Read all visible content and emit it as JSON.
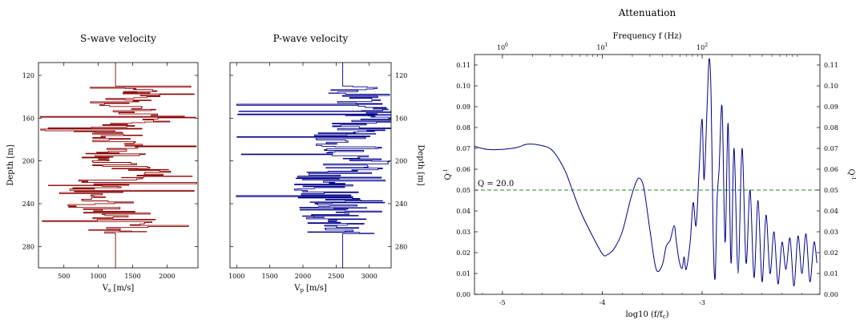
{
  "chart_data": [
    {
      "type": "line",
      "title": "S-wave velocity",
      "xlabel_main": "V",
      "xlabel_sub": "s",
      "xlabel_unit": "[m/s]",
      "ylabel": "Depth [m]",
      "xlim": [
        130,
        2450
      ],
      "ylim": [
        300,
        108
      ],
      "y_inverted": true,
      "xticks": [
        500,
        1000,
        1500,
        2000
      ],
      "yticks": [
        120,
        160,
        200,
        240,
        280
      ],
      "color": "#8b0000",
      "ref_value": 1250,
      "depth_range": [
        130,
        268
      ],
      "mean": 1250,
      "min": 140,
      "max": 2440,
      "anchors": [
        [
          130,
          1250
        ],
        [
          140,
          1480
        ],
        [
          148,
          1120
        ],
        [
          156,
          1800
        ],
        [
          160,
          2050
        ],
        [
          166,
          1450
        ],
        [
          172,
          1050
        ],
        [
          180,
          1250
        ],
        [
          188,
          1500
        ],
        [
          196,
          1100
        ],
        [
          204,
          1350
        ],
        [
          212,
          1700
        ],
        [
          220,
          1000
        ],
        [
          228,
          900
        ],
        [
          236,
          1000
        ],
        [
          244,
          1050
        ],
        [
          252,
          1400
        ],
        [
          260,
          1400
        ],
        [
          268,
          1250
        ]
      ]
    },
    {
      "type": "line",
      "title": "P-wave velocity",
      "xlabel_main": "V",
      "xlabel_sub": "p",
      "xlabel_unit": "[m/s]",
      "ylabel": "Depth [m]",
      "xlim": [
        900,
        3330
      ],
      "ylim": [
        300,
        108
      ],
      "y_inverted": true,
      "xticks": [
        1000,
        1500,
        2000,
        2500,
        3000
      ],
      "yticks": [
        120,
        160,
        200,
        240,
        280
      ],
      "color": "#00008b",
      "ref_value": 2600,
      "depth_range": [
        130,
        268
      ],
      "mean": 2600,
      "min": 930,
      "max": 3320,
      "anchors": [
        [
          130,
          2700
        ],
        [
          140,
          2850
        ],
        [
          148,
          3000
        ],
        [
          156,
          3100
        ],
        [
          160,
          3050
        ],
        [
          166,
          2850
        ],
        [
          172,
          2800
        ],
        [
          180,
          2500
        ],
        [
          188,
          2700
        ],
        [
          196,
          2750
        ],
        [
          204,
          2850
        ],
        [
          212,
          2500
        ],
        [
          220,
          2300
        ],
        [
          228,
          2350
        ],
        [
          236,
          2400
        ],
        [
          244,
          2450
        ],
        [
          252,
          2500
        ],
        [
          260,
          2550
        ],
        [
          268,
          2600
        ]
      ]
    },
    {
      "type": "line",
      "title": "Attenuation",
      "xlabel": "log10 (f/f",
      "xlabel_sub": "c",
      "xlabel_close": ")",
      "top_xlabel": "Frequency f (Hz)",
      "ylabel_main": "Q",
      "ylabel_sup": "-1",
      "xlim": [
        -5.28,
        -1.82
      ],
      "ylim": [
        0,
        0.115
      ],
      "xticks": [
        -5,
        -4,
        -3
      ],
      "xtick_labels": [
        "-5",
        "-4",
        "-3"
      ],
      "yticks": [
        0.0,
        0.01,
        0.02,
        0.03,
        0.04,
        0.05,
        0.06,
        0.07,
        0.08,
        0.09,
        0.1,
        0.11
      ],
      "ytick_labels": [
        "0.00",
        "0.01",
        "0.02",
        "0.03",
        "0.04",
        "0.05",
        "0.06",
        "0.07",
        "0.08",
        "0.09",
        "0.10",
        "0.11"
      ],
      "top_ticks": [
        {
          "log10_f_over_fc": -5.0,
          "base": "10",
          "exp": "0"
        },
        {
          "log10_f_over_fc": -4.0,
          "base": "10",
          "exp": "1"
        },
        {
          "log10_f_over_fc": -3.0,
          "base": "10",
          "exp": "2"
        }
      ],
      "reference_line": {
        "value": 0.05,
        "label": "Q =  20.0",
        "color": "#228b22",
        "style": "dashed"
      },
      "series": [
        {
          "color": "#00008b",
          "x": [
            -5.28,
            -5.15,
            -5.0,
            -4.85,
            -4.75,
            -4.62,
            -4.5,
            -4.38,
            -4.3,
            -4.22,
            -4.12,
            -4.0,
            -3.95,
            -3.88,
            -3.8,
            -3.72,
            -3.66,
            -3.62,
            -3.58,
            -3.52,
            -3.46,
            -3.4,
            -3.36,
            -3.32,
            -3.28,
            -3.26,
            -3.23,
            -3.2,
            -3.18,
            -3.16,
            -3.12,
            -3.09,
            -3.06,
            -3.03,
            -3.0,
            -2.98,
            -2.95,
            -2.93,
            -2.91,
            -2.89,
            -2.87,
            -2.85,
            -2.83,
            -2.8,
            -2.77,
            -2.74,
            -2.71,
            -2.68,
            -2.64,
            -2.6,
            -2.56,
            -2.52,
            -2.48,
            -2.44,
            -2.4,
            -2.36,
            -2.32,
            -2.28,
            -2.24,
            -2.2,
            -2.16,
            -2.12,
            -2.08,
            -2.04,
            -2.0,
            -1.96,
            -1.92,
            -1.88,
            -1.85
          ],
          "y": [
            0.071,
            0.0695,
            0.0695,
            0.0705,
            0.072,
            0.0715,
            0.069,
            0.06,
            0.05,
            0.04,
            0.03,
            0.0195,
            0.019,
            0.022,
            0.03,
            0.045,
            0.054,
            0.0555,
            0.05,
            0.03,
            0.012,
            0.014,
            0.023,
            0.026,
            0.033,
            0.026,
            0.016,
            0.0125,
            0.018,
            0.012,
            0.025,
            0.044,
            0.033,
            0.06,
            0.084,
            0.055,
            0.09,
            0.113,
            0.095,
            0.03,
            0.0075,
            0.045,
            0.06,
            0.09,
            0.025,
            0.082,
            0.015,
            0.07,
            0.01,
            0.07,
            0.015,
            0.05,
            0.008,
            0.045,
            0.006,
            0.038,
            0.01,
            0.03,
            0.005,
            0.025,
            0.012,
            0.027,
            0.004,
            0.028,
            0.01,
            0.029,
            0.006,
            0.025,
            0.015
          ]
        }
      ]
    }
  ]
}
